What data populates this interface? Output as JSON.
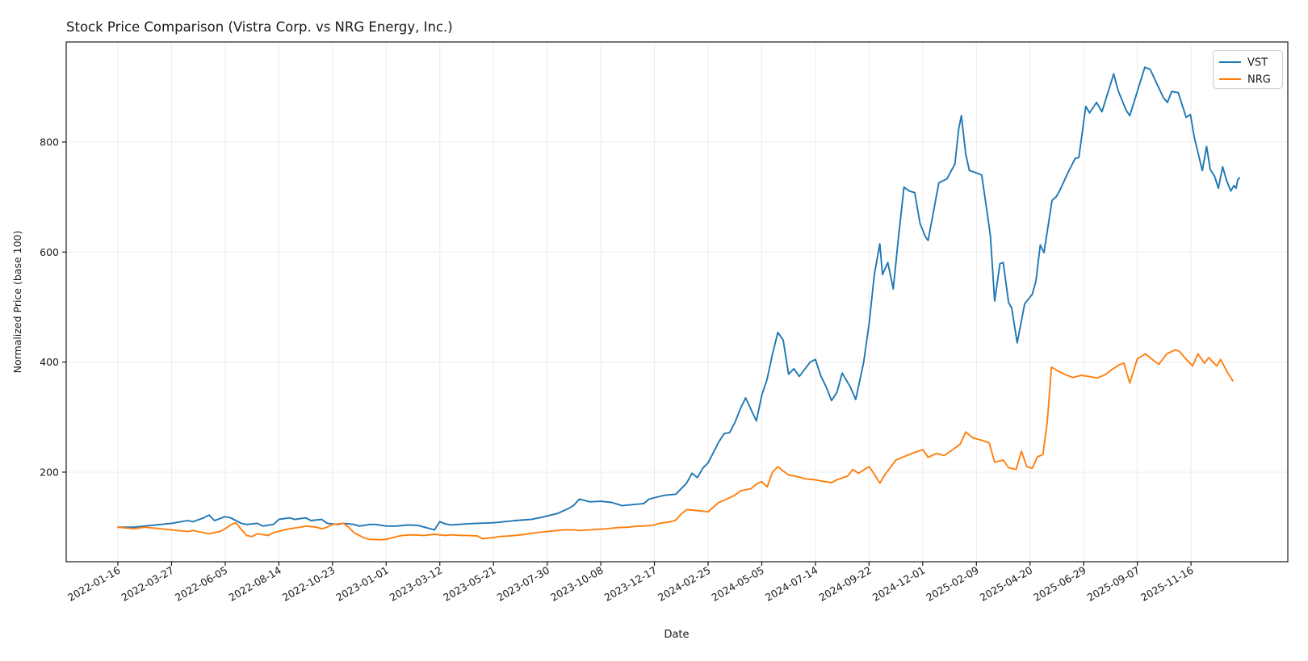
{
  "title": "Stock Price Comparison (Vistra Corp. vs NRG Energy, Inc.)",
  "chart_data": {
    "type": "line",
    "title": "Stock Price Comparison (Vistra Corp. vs NRG Energy, Inc.)",
    "xlabel": "Date",
    "ylabel": "Normalized Price (base 100)",
    "legend_position": "upper right",
    "grid": true,
    "background": "#ffffff",
    "grid_color": "#ececec",
    "axis_color": "#1a1a1a",
    "yticks": [
      200,
      400,
      600,
      800
    ],
    "ylim": [
      37,
      981
    ],
    "xlim_weeks": [
      -9.6,
      218
    ],
    "x_unit": "weeks since 2022-01-16 (weekly data)",
    "x_tick_weeks": [
      0,
      10,
      20,
      30,
      40,
      50,
      60,
      70,
      80,
      90,
      100,
      110,
      120,
      130,
      140,
      150,
      160,
      170,
      180,
      190,
      200
    ],
    "x_tick_labels": [
      "2022-01-16",
      "2022-03-27",
      "2022-06-05",
      "2022-08-14",
      "2022-10-23",
      "2023-01-01",
      "2023-03-12",
      "2023-05-21",
      "2023-07-30",
      "2023-10-08",
      "2023-12-17",
      "2024-02-25",
      "2024-05-05",
      "2024-07-14",
      "2024-09-22",
      "2024-12-01",
      "2025-02-09",
      "2025-04-20",
      "2025-06-29",
      "2025-09-07",
      "2025-11-16"
    ],
    "series": [
      {
        "name": "VST",
        "color": "#1f77b4",
        "points": [
          [
            0,
            100
          ],
          [
            3,
            100
          ],
          [
            5,
            102
          ],
          [
            8,
            105
          ],
          [
            10,
            107
          ],
          [
            13,
            112
          ],
          [
            14,
            110
          ],
          [
            16,
            117
          ],
          [
            17,
            122
          ],
          [
            18,
            112
          ],
          [
            20,
            119
          ],
          [
            21,
            117
          ],
          [
            23,
            107
          ],
          [
            24,
            105
          ],
          [
            26,
            107
          ],
          [
            27,
            102
          ],
          [
            29,
            105
          ],
          [
            30,
            114
          ],
          [
            32,
            117
          ],
          [
            33,
            114
          ],
          [
            35,
            117
          ],
          [
            36,
            112
          ],
          [
            38,
            114
          ],
          [
            39,
            107
          ],
          [
            41,
            105
          ],
          [
            42,
            107
          ],
          [
            44,
            105
          ],
          [
            45,
            102
          ],
          [
            47,
            105
          ],
          [
            48,
            105
          ],
          [
            50,
            102
          ],
          [
            52,
            102
          ],
          [
            54,
            104
          ],
          [
            56,
            103
          ],
          [
            59,
            95
          ],
          [
            60,
            110
          ],
          [
            61,
            106
          ],
          [
            62,
            104
          ],
          [
            65,
            106
          ],
          [
            67,
            107
          ],
          [
            70,
            108
          ],
          [
            72,
            110
          ],
          [
            74,
            112
          ],
          [
            77,
            114
          ],
          [
            79,
            118
          ],
          [
            82,
            125
          ],
          [
            84,
            134
          ],
          [
            85,
            140
          ],
          [
            86,
            151
          ],
          [
            88,
            146
          ],
          [
            90,
            147
          ],
          [
            92,
            145
          ],
          [
            94,
            139
          ],
          [
            96,
            141
          ],
          [
            98,
            143
          ],
          [
            99,
            151
          ],
          [
            101,
            156
          ],
          [
            102,
            158
          ],
          [
            104,
            160
          ],
          [
            106,
            180
          ],
          [
            107,
            198
          ],
          [
            108,
            190
          ],
          [
            109,
            207
          ],
          [
            110,
            217
          ],
          [
            112,
            255
          ],
          [
            113,
            270
          ],
          [
            114,
            272
          ],
          [
            115,
            290
          ],
          [
            116,
            315
          ],
          [
            117,
            335
          ],
          [
            119,
            293
          ],
          [
            120,
            340
          ],
          [
            121,
            369
          ],
          [
            122,
            415
          ],
          [
            123,
            454
          ],
          [
            124,
            440
          ],
          [
            125,
            378
          ],
          [
            126,
            388
          ],
          [
            127,
            374
          ],
          [
            129,
            400
          ],
          [
            130,
            405
          ],
          [
            131,
            375
          ],
          [
            132,
            355
          ],
          [
            133,
            330
          ],
          [
            134,
            345
          ],
          [
            135,
            380
          ],
          [
            136.5,
            355
          ],
          [
            137.5,
            332
          ],
          [
            139,
            400
          ],
          [
            140,
            470
          ],
          [
            141,
            560
          ],
          [
            142,
            615
          ],
          [
            142.5,
            559
          ],
          [
            143.5,
            581
          ],
          [
            144.5,
            533
          ],
          [
            145.5,
            628
          ],
          [
            146.5,
            718
          ],
          [
            147.5,
            711
          ],
          [
            148.5,
            708
          ],
          [
            149.5,
            652
          ],
          [
            150.5,
            628
          ],
          [
            151,
            621
          ],
          [
            153,
            726
          ],
          [
            154.5,
            733
          ],
          [
            156,
            760
          ],
          [
            156.7,
            823
          ],
          [
            157.2,
            848
          ],
          [
            158,
            779
          ],
          [
            158.7,
            748
          ],
          [
            159.7,
            745
          ],
          [
            161,
            740
          ],
          [
            162,
            672
          ],
          [
            162.6,
            630
          ],
          [
            163.4,
            511
          ],
          [
            164.4,
            579
          ],
          [
            165,
            581
          ],
          [
            166,
            508
          ],
          [
            166.6,
            498
          ],
          [
            167.6,
            435
          ],
          [
            169,
            506
          ],
          [
            170.4,
            523
          ],
          [
            171.1,
            547
          ],
          [
            171.9,
            613
          ],
          [
            172.6,
            599
          ],
          [
            174.1,
            694
          ],
          [
            174.9,
            701
          ],
          [
            175.6,
            713
          ],
          [
            177.1,
            745
          ],
          [
            178.4,
            770
          ],
          [
            179.1,
            772
          ],
          [
            180.4,
            865
          ],
          [
            181.1,
            853
          ],
          [
            182.4,
            872
          ],
          [
            183.4,
            855
          ],
          [
            185.6,
            924
          ],
          [
            186.4,
            894
          ],
          [
            187.9,
            858
          ],
          [
            188.6,
            848
          ],
          [
            191.4,
            936
          ],
          [
            192.4,
            932
          ],
          [
            193.4,
            911
          ],
          [
            194.9,
            880
          ],
          [
            195.6,
            872
          ],
          [
            196.4,
            892
          ],
          [
            197.6,
            890
          ],
          [
            199.1,
            845
          ],
          [
            199.9,
            850
          ],
          [
            200.6,
            809
          ],
          [
            201.4,
            777
          ],
          [
            202.1,
            748
          ],
          [
            202.9,
            792
          ],
          [
            203.6,
            750
          ],
          [
            204.4,
            738
          ],
          [
            205.1,
            716
          ],
          [
            205.9,
            755
          ],
          [
            206.6,
            731
          ],
          [
            207.4,
            711
          ],
          [
            208,
            721
          ],
          [
            208.4,
            716
          ],
          [
            208.7,
            731
          ],
          [
            209,
            735
          ]
        ]
      },
      {
        "name": "NRG",
        "color": "#ff7f0e",
        "points": [
          [
            0,
            100
          ],
          [
            3,
            97
          ],
          [
            5,
            100
          ],
          [
            8,
            97
          ],
          [
            10,
            95
          ],
          [
            13,
            92
          ],
          [
            14,
            94
          ],
          [
            16,
            90
          ],
          [
            17,
            88
          ],
          [
            19,
            92
          ],
          [
            20,
            97
          ],
          [
            21,
            104
          ],
          [
            22,
            108
          ],
          [
            23,
            96
          ],
          [
            24,
            85
          ],
          [
            25,
            83
          ],
          [
            26,
            88
          ],
          [
            28,
            85
          ],
          [
            29,
            90
          ],
          [
            31,
            95
          ],
          [
            32,
            97
          ],
          [
            34,
            100
          ],
          [
            35,
            102
          ],
          [
            37,
            100
          ],
          [
            38,
            97
          ],
          [
            39,
            100
          ],
          [
            40,
            105
          ],
          [
            42,
            107
          ],
          [
            43,
            100
          ],
          [
            44,
            90
          ],
          [
            46,
            80
          ],
          [
            47,
            78
          ],
          [
            49,
            77
          ],
          [
            50,
            78
          ],
          [
            52,
            83
          ],
          [
            53,
            85
          ],
          [
            55,
            86
          ],
          [
            57,
            85
          ],
          [
            59,
            87
          ],
          [
            61,
            85
          ],
          [
            62,
            86
          ],
          [
            64,
            85
          ],
          [
            65,
            85
          ],
          [
            67,
            84
          ],
          [
            68,
            79
          ],
          [
            70,
            81
          ],
          [
            71,
            83
          ],
          [
            73,
            84
          ],
          [
            74,
            85
          ],
          [
            76,
            87
          ],
          [
            77,
            89
          ],
          [
            79,
            91
          ],
          [
            80,
            92
          ],
          [
            82,
            94
          ],
          [
            83,
            95
          ],
          [
            85,
            95
          ],
          [
            86,
            94
          ],
          [
            88,
            95
          ],
          [
            89,
            96
          ],
          [
            91,
            97
          ],
          [
            93,
            99
          ],
          [
            95,
            100
          ],
          [
            97,
            102
          ],
          [
            98,
            102
          ],
          [
            100,
            104
          ],
          [
            101,
            107
          ],
          [
            103,
            110
          ],
          [
            104,
            113
          ],
          [
            105,
            124
          ],
          [
            106,
            132
          ],
          [
            107,
            131
          ],
          [
            108,
            130
          ],
          [
            110,
            128
          ],
          [
            112,
            145
          ],
          [
            113,
            149
          ],
          [
            115,
            158
          ],
          [
            116,
            166
          ],
          [
            118,
            170
          ],
          [
            119,
            178
          ],
          [
            120,
            183
          ],
          [
            121,
            173
          ],
          [
            122,
            200
          ],
          [
            123,
            210
          ],
          [
            124,
            202
          ],
          [
            125,
            195
          ],
          [
            127,
            191
          ],
          [
            128,
            188
          ],
          [
            130,
            186
          ],
          [
            131,
            184
          ],
          [
            133,
            181
          ],
          [
            134,
            186
          ],
          [
            136,
            193
          ],
          [
            137,
            205
          ],
          [
            138,
            198
          ],
          [
            140,
            210
          ],
          [
            141,
            196
          ],
          [
            142,
            180
          ],
          [
            143,
            196
          ],
          [
            145,
            222
          ],
          [
            148,
            234
          ],
          [
            150,
            241
          ],
          [
            151,
            227
          ],
          [
            152.6,
            234
          ],
          [
            154,
            230
          ],
          [
            155.6,
            241
          ],
          [
            157,
            251
          ],
          [
            158,
            273
          ],
          [
            159.4,
            262
          ],
          [
            161,
            258
          ],
          [
            162.4,
            253
          ],
          [
            163.4,
            218
          ],
          [
            165,
            222
          ],
          [
            166,
            208
          ],
          [
            167.4,
            205
          ],
          [
            168.4,
            238
          ],
          [
            169.4,
            210
          ],
          [
            170.4,
            207
          ],
          [
            171.4,
            228
          ],
          [
            172.4,
            232
          ],
          [
            173.2,
            290
          ],
          [
            174,
            391
          ],
          [
            175,
            385
          ],
          [
            176.4,
            378
          ],
          [
            178,
            372
          ],
          [
            179.5,
            376
          ],
          [
            181,
            374
          ],
          [
            182.5,
            371
          ],
          [
            184,
            377
          ],
          [
            185.5,
            388
          ],
          [
            186.6,
            395
          ],
          [
            187.5,
            398
          ],
          [
            188.6,
            362
          ],
          [
            190,
            406
          ],
          [
            191.5,
            415
          ],
          [
            193,
            403
          ],
          [
            194,
            396
          ],
          [
            195.5,
            415
          ],
          [
            197,
            422
          ],
          [
            197.8,
            420
          ],
          [
            199.3,
            403
          ],
          [
            200.3,
            393
          ],
          [
            201.3,
            415
          ],
          [
            202.5,
            398
          ],
          [
            203.3,
            408
          ],
          [
            204.8,
            393
          ],
          [
            205.5,
            405
          ],
          [
            206.8,
            381
          ],
          [
            207.8,
            366
          ]
        ]
      }
    ]
  }
}
